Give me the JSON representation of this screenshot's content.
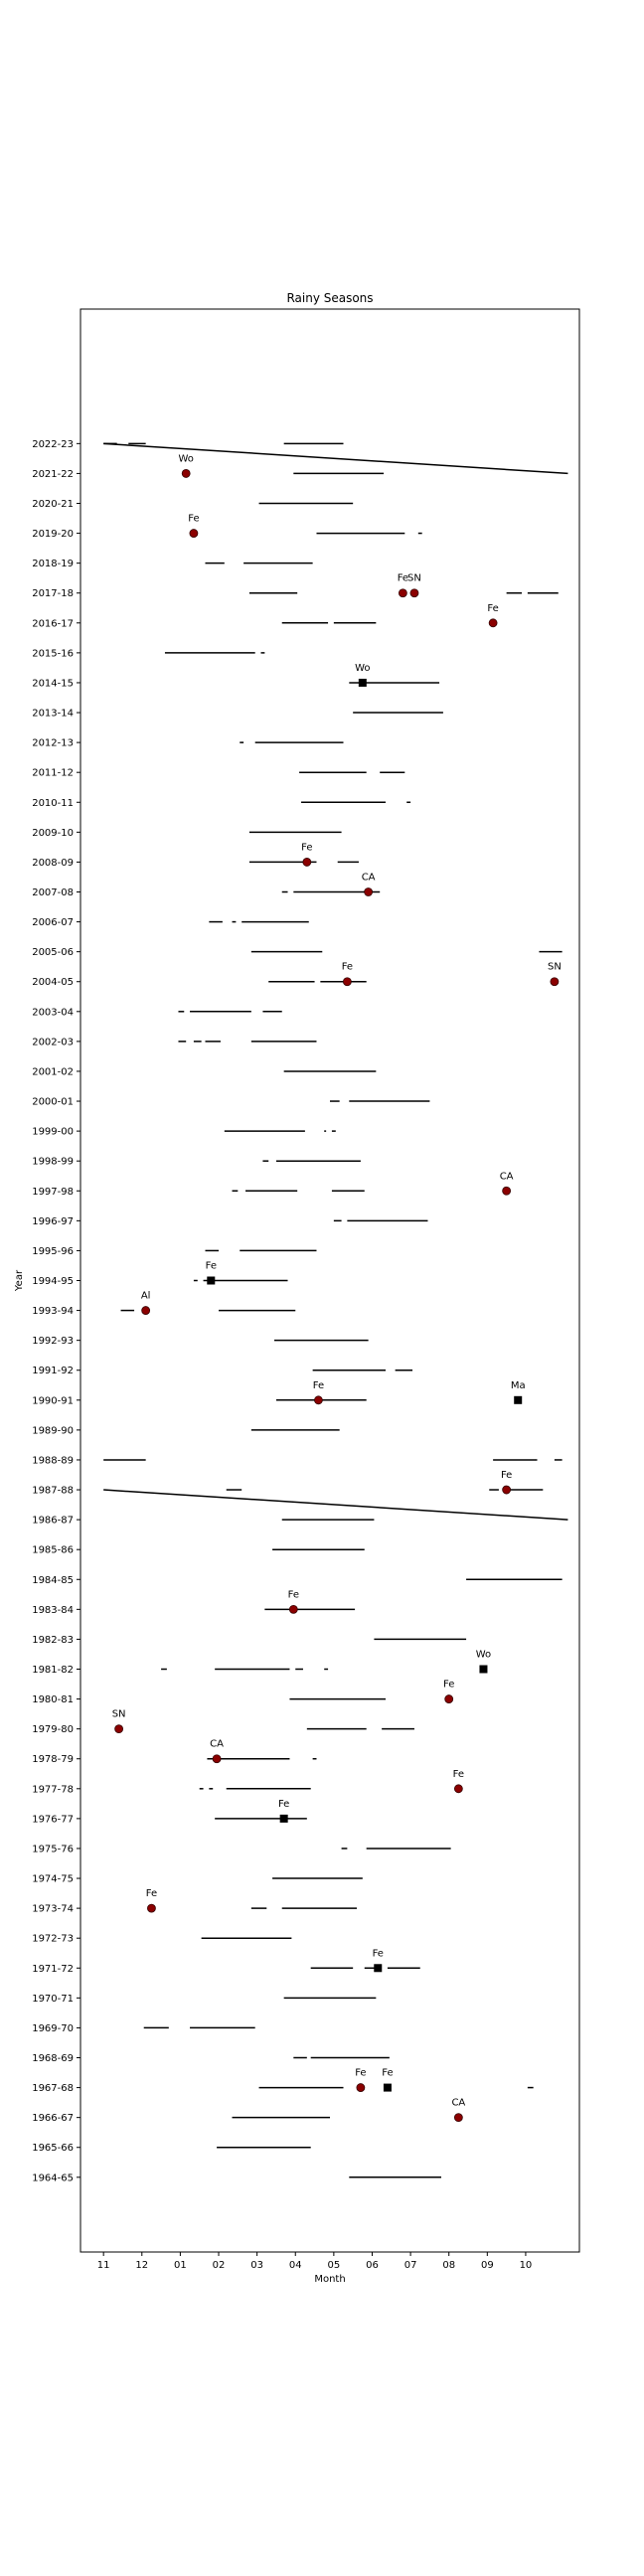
{
  "chart_data": {
    "type": "timeline",
    "title": "Rainy Seasons",
    "xlabel": "Month",
    "ylabel": "Year",
    "x_ticks": [
      {
        "value": 0,
        "label": "11"
      },
      {
        "value": 1,
        "label": "12"
      },
      {
        "value": 2,
        "label": "01"
      },
      {
        "value": 3,
        "label": "02"
      },
      {
        "value": 4,
        "label": "03"
      },
      {
        "value": 5,
        "label": "04"
      },
      {
        "value": 6,
        "label": "05"
      },
      {
        "value": 7,
        "label": "06"
      },
      {
        "value": 8,
        "label": "07"
      },
      {
        "value": 9,
        "label": "08"
      },
      {
        "value": 10,
        "label": "09"
      },
      {
        "value": 11,
        "label": "10"
      }
    ],
    "xlim": [
      -0.6,
      12.4
    ],
    "ylim": [
      -2.5,
      62.5
    ],
    "years": [
      "1964-65",
      "1965-66",
      "1966-67",
      "1967-68",
      "1968-69",
      "1969-70",
      "1970-71",
      "1971-72",
      "1972-73",
      "1973-74",
      "1974-75",
      "1975-76",
      "1976-77",
      "1977-78",
      "1978-79",
      "1979-80",
      "1980-81",
      "1981-82",
      "1982-83",
      "1983-84",
      "1984-85",
      "1985-86",
      "1986-87",
      "1987-88",
      "1988-89",
      "1989-90",
      "1990-91",
      "1991-92",
      "1992-93",
      "1993-94",
      "1994-95",
      "1995-96",
      "1996-97",
      "1997-98",
      "1998-99",
      "1999-00",
      "2000-01",
      "2001-02",
      "2002-03",
      "2003-04",
      "2004-05",
      "2005-06",
      "2006-07",
      "2007-08",
      "2008-09",
      "2009-10",
      "2010-11",
      "2011-12",
      "2012-13",
      "2013-14",
      "2014-15",
      "2015-16",
      "2016-17",
      "2017-18",
      "2018-19",
      "2019-20",
      "2020-21",
      "2021-22",
      "2022-23"
    ],
    "segments": [
      {
        "year": "1964-65",
        "start": 6.4,
        "end": 8.8
      },
      {
        "year": "1965-66",
        "start": 2.95,
        "end": 5.4
      },
      {
        "year": "1966-67",
        "start": 3.35,
        "end": 5.9
      },
      {
        "year": "1967-68",
        "start": 4.05,
        "end": 6.25
      },
      {
        "year": "1967-68",
        "start": 11.05,
        "end": 11.2
      },
      {
        "year": "1968-69",
        "start": 4.95,
        "end": 5.3
      },
      {
        "year": "1968-69",
        "start": 5.4,
        "end": 7.45
      },
      {
        "year": "1969-70",
        "start": 1.05,
        "end": 1.7
      },
      {
        "year": "1969-70",
        "start": 2.25,
        "end": 3.95
      },
      {
        "year": "1970-71",
        "start": 4.7,
        "end": 7.1
      },
      {
        "year": "1971-72",
        "start": 5.4,
        "end": 6.5
      },
      {
        "year": "1971-72",
        "start": 6.8,
        "end": 7.2
      },
      {
        "year": "1971-72",
        "start": 7.4,
        "end": 8.25
      },
      {
        "year": "1972-73",
        "start": 2.55,
        "end": 4.9
      },
      {
        "year": "1973-74",
        "start": 3.85,
        "end": 4.25
      },
      {
        "year": "1973-74",
        "start": 4.65,
        "end": 6.6
      },
      {
        "year": "1974-75",
        "start": 4.4,
        "end": 6.75
      },
      {
        "year": "1975-76",
        "start": 6.2,
        "end": 6.35
      },
      {
        "year": "1975-76",
        "start": 6.85,
        "end": 9.05
      },
      {
        "year": "1976-77",
        "start": 2.9,
        "end": 5.3
      },
      {
        "year": "1977-78",
        "start": 2.5,
        "end": 2.6
      },
      {
        "year": "1977-78",
        "start": 2.75,
        "end": 2.85
      },
      {
        "year": "1977-78",
        "start": 3.2,
        "end": 5.4
      },
      {
        "year": "1978-79",
        "start": 2.7,
        "end": 4.85
      },
      {
        "year": "1978-79",
        "start": 5.45,
        "end": 5.55
      },
      {
        "year": "1979-80",
        "start": 5.3,
        "end": 6.85
      },
      {
        "year": "1979-80",
        "start": 7.25,
        "end": 8.1
      },
      {
        "year": "1980-81",
        "start": 4.85,
        "end": 7.35
      },
      {
        "year": "1981-82",
        "start": 1.5,
        "end": 1.65
      },
      {
        "year": "1981-82",
        "start": 2.9,
        "end": 4.85
      },
      {
        "year": "1981-82",
        "start": 5.0,
        "end": 5.2
      },
      {
        "year": "1981-82",
        "start": 5.75,
        "end": 5.85
      },
      {
        "year": "1982-83",
        "start": 7.05,
        "end": 9.45
      },
      {
        "year": "1983-84",
        "start": 4.2,
        "end": 6.55
      },
      {
        "year": "1984-85",
        "start": 9.45,
        "end": 11.95
      },
      {
        "year": "1985-86",
        "start": 4.4,
        "end": 6.8
      },
      {
        "year": "1986-87",
        "start": 4.65,
        "end": 7.05
      },
      {
        "year": "1987-88",
        "start": 3.2,
        "end": 3.6
      },
      {
        "year": "1987-88",
        "start": 10.05,
        "end": 10.3
      },
      {
        "year": "1987-88",
        "start": 10.5,
        "end": 11.45
      },
      {
        "year": "1988-89",
        "start": 0.0,
        "end": 1.1
      },
      {
        "year": "1988-89",
        "start": 10.15,
        "end": 11.3
      },
      {
        "year": "1988-89",
        "start": 11.75,
        "end": 11.95
      },
      {
        "year": "1989-90",
        "start": 3.85,
        "end": 6.15
      },
      {
        "year": "1990-91",
        "start": 4.5,
        "end": 6.85
      },
      {
        "year": "1991-92",
        "start": 5.45,
        "end": 7.35
      },
      {
        "year": "1991-92",
        "start": 7.6,
        "end": 8.05
      },
      {
        "year": "1992-93",
        "start": 4.45,
        "end": 6.9
      },
      {
        "year": "1993-94",
        "start": 0.45,
        "end": 0.8
      },
      {
        "year": "1993-94",
        "start": 3.0,
        "end": 5.0
      },
      {
        "year": "1994-95",
        "start": 2.35,
        "end": 2.45
      },
      {
        "year": "1994-95",
        "start": 2.6,
        "end": 4.8
      },
      {
        "year": "1995-96",
        "start": 2.65,
        "end": 3.0
      },
      {
        "year": "1995-96",
        "start": 3.55,
        "end": 5.55
      },
      {
        "year": "1996-97",
        "start": 6.0,
        "end": 6.2
      },
      {
        "year": "1996-97",
        "start": 6.35,
        "end": 8.45
      },
      {
        "year": "1997-98",
        "start": 3.35,
        "end": 3.5
      },
      {
        "year": "1997-98",
        "start": 3.7,
        "end": 5.05
      },
      {
        "year": "1997-98",
        "start": 5.95,
        "end": 6.8
      },
      {
        "year": "1998-99",
        "start": 4.15,
        "end": 4.3
      },
      {
        "year": "1998-99",
        "start": 4.5,
        "end": 6.7
      },
      {
        "year": "1999-00",
        "start": 3.15,
        "end": 5.25
      },
      {
        "year": "1999-00",
        "start": 5.75,
        "end": 5.8
      },
      {
        "year": "1999-00",
        "start": 5.95,
        "end": 6.05
      },
      {
        "year": "2000-01",
        "start": 5.9,
        "end": 6.15
      },
      {
        "year": "2000-01",
        "start": 6.4,
        "end": 8.5
      },
      {
        "year": "2001-02",
        "start": 4.7,
        "end": 7.1
      },
      {
        "year": "2002-03",
        "start": 1.95,
        "end": 2.15
      },
      {
        "year": "2002-03",
        "start": 2.35,
        "end": 2.55
      },
      {
        "year": "2002-03",
        "start": 2.65,
        "end": 3.05
      },
      {
        "year": "2002-03",
        "start": 3.85,
        "end": 5.55
      },
      {
        "year": "2003-04",
        "start": 1.95,
        "end": 2.1
      },
      {
        "year": "2003-04",
        "start": 2.25,
        "end": 3.85
      },
      {
        "year": "2003-04",
        "start": 4.15,
        "end": 4.65
      },
      {
        "year": "2004-05",
        "start": 4.3,
        "end": 5.5
      },
      {
        "year": "2004-05",
        "start": 5.65,
        "end": 6.85
      },
      {
        "year": "2005-06",
        "start": 3.85,
        "end": 5.7
      },
      {
        "year": "2005-06",
        "start": 11.35,
        "end": 11.95
      },
      {
        "year": "2006-07",
        "start": 2.75,
        "end": 3.1
      },
      {
        "year": "2006-07",
        "start": 3.35,
        "end": 3.45
      },
      {
        "year": "2006-07",
        "start": 3.6,
        "end": 5.35
      },
      {
        "year": "2007-08",
        "start": 4.65,
        "end": 4.8
      },
      {
        "year": "2007-08",
        "start": 4.95,
        "end": 7.2
      },
      {
        "year": "2008-09",
        "start": 3.8,
        "end": 5.55
      },
      {
        "year": "2008-09",
        "start": 6.1,
        "end": 6.65
      },
      {
        "year": "2009-10",
        "start": 3.8,
        "end": 6.2
      },
      {
        "year": "2010-11",
        "start": 5.15,
        "end": 7.35
      },
      {
        "year": "2010-11",
        "start": 7.9,
        "end": 8.0
      },
      {
        "year": "2011-12",
        "start": 5.1,
        "end": 6.85
      },
      {
        "year": "2011-12",
        "start": 7.2,
        "end": 7.85
      },
      {
        "year": "2012-13",
        "start": 3.55,
        "end": 3.65
      },
      {
        "year": "2012-13",
        "start": 3.95,
        "end": 6.25
      },
      {
        "year": "2013-14",
        "start": 6.5,
        "end": 8.85
      },
      {
        "year": "2014-15",
        "start": 6.4,
        "end": 8.75
      },
      {
        "year": "2015-16",
        "start": 1.6,
        "end": 3.95
      },
      {
        "year": "2015-16",
        "start": 4.1,
        "end": 4.2
      },
      {
        "year": "2016-17",
        "start": 4.65,
        "end": 5.85
      },
      {
        "year": "2016-17",
        "start": 6.0,
        "end": 7.1
      },
      {
        "year": "2017-18",
        "start": 3.8,
        "end": 5.05
      },
      {
        "year": "2017-18",
        "start": 10.5,
        "end": 10.9
      },
      {
        "year": "2017-18",
        "start": 11.05,
        "end": 11.85
      },
      {
        "year": "2018-19",
        "start": 2.65,
        "end": 3.15
      },
      {
        "year": "2018-19",
        "start": 3.65,
        "end": 5.45
      },
      {
        "year": "2019-20",
        "start": 5.55,
        "end": 7.85
      },
      {
        "year": "2019-20",
        "start": 8.2,
        "end": 8.3
      },
      {
        "year": "2020-21",
        "start": 4.05,
        "end": 6.5
      },
      {
        "year": "2021-22",
        "start": 4.95,
        "end": 7.3
      },
      {
        "year": "2022-23",
        "start": 0.0,
        "end": 0.35
      },
      {
        "year": "2022-23",
        "start": 0.65,
        "end": 1.1
      },
      {
        "year": "2022-23",
        "start": 4.7,
        "end": 6.25
      }
    ],
    "slanted_lines": [
      {
        "from_year": "2022-23",
        "from_x": 0.0,
        "to_year": "2021-22",
        "to_x": 12.1
      },
      {
        "from_year": "1987-88",
        "from_x": 0.0,
        "to_year": "1986-87",
        "to_x": 12.1
      }
    ],
    "markers": [
      {
        "year": "1966-67",
        "x": 9.25,
        "label": "CA",
        "shape": "circle"
      },
      {
        "year": "1967-68",
        "x": 6.7,
        "label": "Fe",
        "shape": "circle"
      },
      {
        "year": "1967-68",
        "x": 7.4,
        "label": "Fe",
        "shape": "square"
      },
      {
        "year": "1971-72",
        "x": 7.15,
        "label": "Fe",
        "shape": "square"
      },
      {
        "year": "1973-74",
        "x": 1.25,
        "label": "Fe",
        "shape": "circle"
      },
      {
        "year": "1976-77",
        "x": 4.7,
        "label": "Fe",
        "shape": "square"
      },
      {
        "year": "1977-78",
        "x": 9.25,
        "label": "Fe",
        "shape": "circle"
      },
      {
        "year": "1978-79",
        "x": 2.95,
        "label": "CA",
        "shape": "circle"
      },
      {
        "year": "1979-80",
        "x": 0.4,
        "label": "SN",
        "shape": "circle"
      },
      {
        "year": "1980-81",
        "x": 9.0,
        "label": "Fe",
        "shape": "circle"
      },
      {
        "year": "1981-82",
        "x": 9.9,
        "label": "Wo",
        "shape": "square"
      },
      {
        "year": "1983-84",
        "x": 4.95,
        "label": "Fe",
        "shape": "circle"
      },
      {
        "year": "1987-88",
        "x": 10.5,
        "label": "Fe",
        "shape": "circle"
      },
      {
        "year": "1990-91",
        "x": 5.6,
        "label": "Fe",
        "shape": "circle"
      },
      {
        "year": "1990-91",
        "x": 10.8,
        "label": "Ma",
        "shape": "square"
      },
      {
        "year": "1993-94",
        "x": 1.1,
        "label": "Al",
        "shape": "circle"
      },
      {
        "year": "1994-95",
        "x": 2.8,
        "label": "Fe",
        "shape": "square"
      },
      {
        "year": "1997-98",
        "x": 10.5,
        "label": "CA",
        "shape": "circle"
      },
      {
        "year": "2004-05",
        "x": 6.35,
        "label": "Fe",
        "shape": "circle"
      },
      {
        "year": "2004-05",
        "x": 11.75,
        "label": "SN",
        "shape": "circle"
      },
      {
        "year": "2007-08",
        "x": 6.9,
        "label": "CA",
        "shape": "circle"
      },
      {
        "year": "2008-09",
        "x": 5.3,
        "label": "Fe",
        "shape": "circle"
      },
      {
        "year": "2014-15",
        "x": 6.75,
        "label": "Wo",
        "shape": "square"
      },
      {
        "year": "2016-17",
        "x": 10.15,
        "label": "Fe",
        "shape": "circle"
      },
      {
        "year": "2017-18",
        "x": 7.8,
        "label": "Fe",
        "shape": "circle"
      },
      {
        "year": "2017-18",
        "x": 8.1,
        "label": "SN",
        "shape": "circle"
      },
      {
        "year": "2019-20",
        "x": 2.35,
        "label": "Fe",
        "shape": "circle"
      },
      {
        "year": "2021-22",
        "x": 2.15,
        "label": "Wo",
        "shape": "circle"
      }
    ],
    "colors": {
      "line": "#000000",
      "circle_marker": "#8b0000",
      "square_marker": "#000000"
    },
    "grid": false,
    "legend": "none"
  }
}
